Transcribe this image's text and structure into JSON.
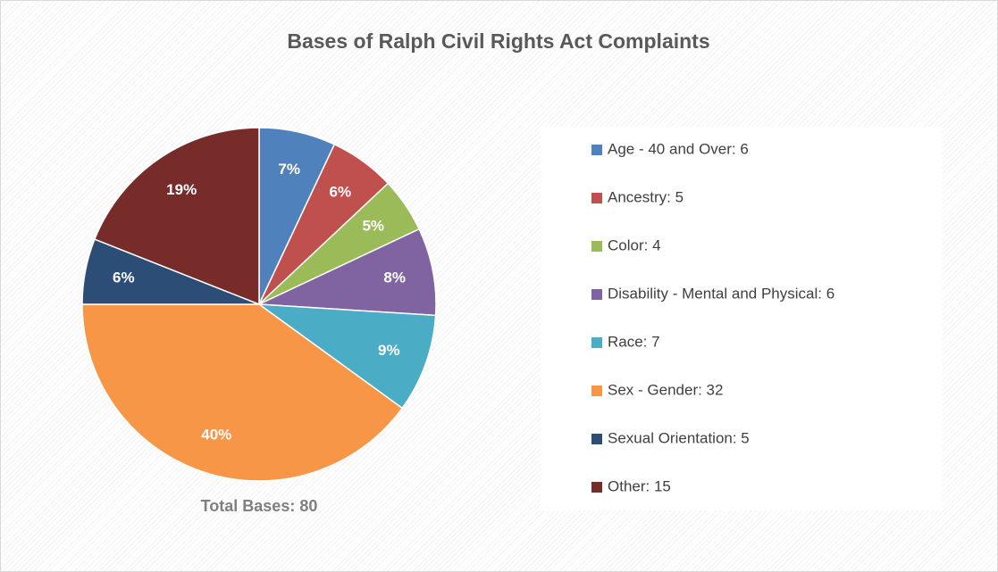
{
  "chart_data": {
    "type": "pie",
    "title": "Bases of Ralph Civil Rights Act Complaints",
    "categories": [
      "Age - 40 and Over: 6",
      "Ancestry: 5",
      "Color: 4",
      "Disability - Mental and Physical: 6",
      "Race: 7",
      "Sex - Gender: 32",
      "Sexual Orientation: 5",
      "Other: 15"
    ],
    "values": [
      7,
      6,
      5,
      8,
      9,
      40,
      6,
      19
    ],
    "value_labels": [
      "7%",
      "6%",
      "5%",
      "8%",
      "9%",
      "40%",
      "6%",
      "19%"
    ],
    "colors": [
      "#4f81bd",
      "#c0504d",
      "#9bbb59",
      "#8064a2",
      "#4bacc6",
      "#f79646",
      "#2c4d75",
      "#772c2a"
    ],
    "annotation": "Total Bases: 80",
    "legend": "right"
  }
}
